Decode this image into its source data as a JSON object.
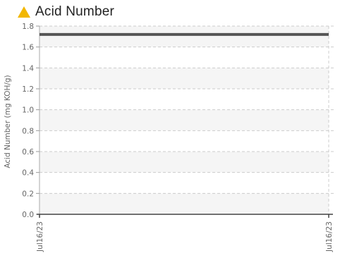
{
  "header": {
    "title": "Acid Number",
    "icon": "warning-triangle-icon",
    "icon_color": "#f2b700"
  },
  "chart_data": {
    "type": "line",
    "title": "Acid Number",
    "xlabel": "",
    "ylabel": "Acid Number (mg KOH/g)",
    "x": [
      "Jul16/23",
      "Jul16/23"
    ],
    "series": [
      {
        "values": [
          1.72,
          1.72
        ],
        "color": "#555555"
      }
    ],
    "ylim": [
      0,
      1.8
    ],
    "yticks": [
      "0.0",
      "0.2",
      "0.4",
      "0.6",
      "0.8",
      "1.0",
      "1.2",
      "1.4",
      "1.6",
      "1.8"
    ],
    "grid": true,
    "band_color": "#f5f5f5",
    "grid_color": "#cccccc"
  }
}
